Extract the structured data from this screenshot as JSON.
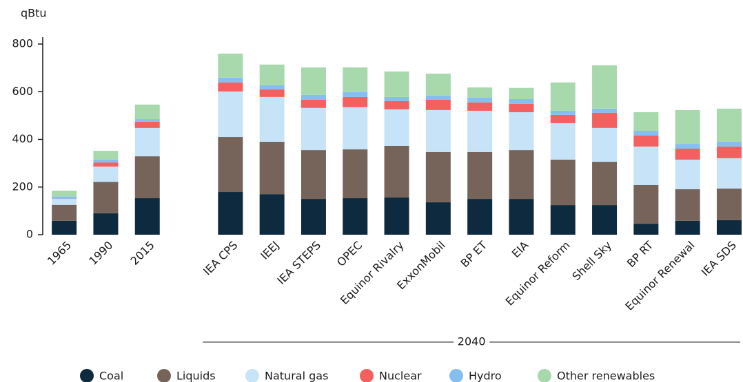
{
  "chart_data": {
    "type": "stacked_bar",
    "y_label": "qBtu",
    "group_label": "2040",
    "categories": [
      "1965",
      "1990",
      "2015",
      null,
      "IEA CPS",
      "IEEJ",
      "IEA STEPS",
      "OPEC",
      "Equinor Rivalry",
      "ExxonMobil",
      "BP ET",
      "EIA",
      "Equinor Reform",
      "Shell Sky",
      "BP RT",
      "Equinor Renewal",
      "IEA SDS"
    ],
    "series": [
      {
        "name": "Coal",
        "color": "#0d2a3f",
        "values": [
          58,
          90,
          153,
          null,
          179,
          170,
          150,
          153,
          156,
          136,
          150,
          150,
          124,
          124,
          46,
          58,
          61
        ]
      },
      {
        "name": "Liquids",
        "color": "#76645b",
        "values": [
          67,
          132,
          176,
          null,
          231,
          220,
          205,
          205,
          217,
          211,
          197,
          205,
          191,
          182,
          162,
          133,
          133
        ]
      },
      {
        "name": "Natural gas",
        "color": "#c6e3f7",
        "values": [
          25,
          64,
          119,
          null,
          191,
          188,
          177,
          177,
          153,
          176,
          173,
          159,
          153,
          142,
          162,
          124,
          127
        ]
      },
      {
        "name": "Nuclear",
        "color": "#f4605f",
        "values": [
          1,
          17,
          26,
          null,
          38,
          32,
          34,
          43,
          35,
          43,
          35,
          35,
          35,
          64,
          46,
          46,
          49
        ]
      },
      {
        "name": "Hydro",
        "color": "#84bff0",
        "values": [
          9,
          12,
          11,
          null,
          20,
          17,
          21,
          20,
          17,
          18,
          20,
          20,
          17,
          17,
          20,
          20,
          20
        ]
      },
      {
        "name": "Other renewables",
        "color": "#a8d9ad",
        "values": [
          25,
          37,
          61,
          null,
          101,
          87,
          115,
          104,
          107,
          92,
          43,
          47,
          119,
          182,
          78,
          142,
          139
        ]
      }
    ],
    "ylim": [
      0,
      800
    ],
    "yticks": [
      0,
      200,
      400,
      600,
      800
    ],
    "grid": false,
    "legend": "bottom"
  }
}
